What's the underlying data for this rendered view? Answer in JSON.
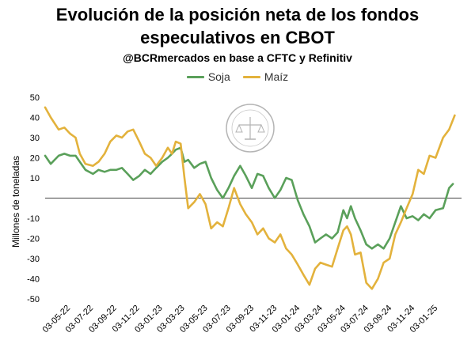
{
  "header": {
    "title_line1": "Evolución de la posición neta de los fondos",
    "title_line2": "especulativos en CBOT",
    "subtitle": "@BCRmercados en base a CFTC y Refinitiv"
  },
  "chart_data": {
    "type": "line",
    "title": "Evolución de la posición neta de los fondos especulativos en CBOT",
    "subtitle": "@BCRmercados en base a CFTC y Refinitiv",
    "ylabel": "Millones de toneladas",
    "xlabel": "",
    "ylim": [
      -50,
      50
    ],
    "yticks": [
      50,
      40,
      30,
      20,
      10,
      -10,
      -20,
      -30,
      -40,
      -50
    ],
    "xlim": [
      "2022-03-05",
      "2025-03-15"
    ],
    "xtick_labels": [
      "03-05-22",
      "03-07-22",
      "03-09-22",
      "03-11-22",
      "03-01-23",
      "03-03-23",
      "03-05-23",
      "03-07-23",
      "03-09-23",
      "03-11-23",
      "03-01-24",
      "03-03-24",
      "03-05-24",
      "03-07-24",
      "03-09-24",
      "03-11-24",
      "03-01-25"
    ],
    "xtick_dates": [
      "2022-05-03",
      "2022-07-03",
      "2022-09-03",
      "2022-11-03",
      "2023-01-03",
      "2023-03-03",
      "2023-05-03",
      "2023-07-03",
      "2023-09-03",
      "2023-11-03",
      "2024-01-03",
      "2024-03-03",
      "2024-05-03",
      "2024-07-03",
      "2024-09-03",
      "2024-11-03",
      "2025-01-03"
    ],
    "grid": false,
    "legend_position": "top",
    "series": [
      {
        "name": "Soja",
        "color": "#5aa05a",
        "points": [
          [
            "2022-03-05",
            21
          ],
          [
            "2022-03-20",
            17
          ],
          [
            "2022-04-10",
            21
          ],
          [
            "2022-04-25",
            22
          ],
          [
            "2022-05-10",
            21
          ],
          [
            "2022-05-25",
            21
          ],
          [
            "2022-06-05",
            18
          ],
          [
            "2022-06-20",
            14
          ],
          [
            "2022-07-10",
            12
          ],
          [
            "2022-07-25",
            14
          ],
          [
            "2022-08-10",
            13
          ],
          [
            "2022-08-25",
            14
          ],
          [
            "2022-09-10",
            14
          ],
          [
            "2022-09-25",
            15
          ],
          [
            "2022-10-10",
            12
          ],
          [
            "2022-10-25",
            9
          ],
          [
            "2022-11-10",
            11
          ],
          [
            "2022-11-25",
            14
          ],
          [
            "2022-12-10",
            12
          ],
          [
            "2022-12-25",
            15
          ],
          [
            "2023-01-10",
            18
          ],
          [
            "2023-01-25",
            20
          ],
          [
            "2023-02-05",
            22
          ],
          [
            "2023-02-15",
            24
          ],
          [
            "2023-02-28",
            25
          ],
          [
            "2023-03-10",
            18
          ],
          [
            "2023-03-20",
            19
          ],
          [
            "2023-04-05",
            15
          ],
          [
            "2023-04-20",
            17
          ],
          [
            "2023-05-05",
            18
          ],
          [
            "2023-05-20",
            10
          ],
          [
            "2023-06-05",
            4
          ],
          [
            "2023-06-20",
            0
          ],
          [
            "2023-07-05",
            5
          ],
          [
            "2023-07-20",
            11
          ],
          [
            "2023-08-05",
            16
          ],
          [
            "2023-08-20",
            11
          ],
          [
            "2023-09-05",
            5
          ],
          [
            "2023-09-20",
            12
          ],
          [
            "2023-10-05",
            11
          ],
          [
            "2023-10-20",
            5
          ],
          [
            "2023-11-05",
            0
          ],
          [
            "2023-11-20",
            4
          ],
          [
            "2023-12-05",
            10
          ],
          [
            "2023-12-20",
            9
          ],
          [
            "2024-01-05",
            -1
          ],
          [
            "2024-01-20",
            -8
          ],
          [
            "2024-02-05",
            -14
          ],
          [
            "2024-02-20",
            -22
          ],
          [
            "2024-03-05",
            -20
          ],
          [
            "2024-03-20",
            -18
          ],
          [
            "2024-04-05",
            -20
          ],
          [
            "2024-04-20",
            -17
          ],
          [
            "2024-05-05",
            -6
          ],
          [
            "2024-05-15",
            -10
          ],
          [
            "2024-05-25",
            -4
          ],
          [
            "2024-06-05",
            -10
          ],
          [
            "2024-06-20",
            -16
          ],
          [
            "2024-07-05",
            -23
          ],
          [
            "2024-07-20",
            -25
          ],
          [
            "2024-08-05",
            -23
          ],
          [
            "2024-08-20",
            -25
          ],
          [
            "2024-09-05",
            -20
          ],
          [
            "2024-09-20",
            -12
          ],
          [
            "2024-10-05",
            -4
          ],
          [
            "2024-10-20",
            -10
          ],
          [
            "2024-11-05",
            -9
          ],
          [
            "2024-11-20",
            -11
          ],
          [
            "2024-12-05",
            -8
          ],
          [
            "2024-12-20",
            -10
          ],
          [
            "2025-01-05",
            -6
          ],
          [
            "2025-01-25",
            -5
          ],
          [
            "2025-02-10",
            5
          ],
          [
            "2025-02-20",
            7
          ]
        ]
      },
      {
        "name": "Maíz",
        "color": "#e3b23c",
        "points": [
          [
            "2022-03-05",
            45
          ],
          [
            "2022-03-20",
            40
          ],
          [
            "2022-04-10",
            34
          ],
          [
            "2022-04-25",
            35
          ],
          [
            "2022-05-10",
            32
          ],
          [
            "2022-05-25",
            30
          ],
          [
            "2022-06-05",
            22
          ],
          [
            "2022-06-20",
            17
          ],
          [
            "2022-07-10",
            16
          ],
          [
            "2022-07-25",
            18
          ],
          [
            "2022-08-10",
            22
          ],
          [
            "2022-08-25",
            28
          ],
          [
            "2022-09-10",
            31
          ],
          [
            "2022-09-25",
            30
          ],
          [
            "2022-10-10",
            33
          ],
          [
            "2022-10-25",
            34
          ],
          [
            "2022-11-10",
            28
          ],
          [
            "2022-11-25",
            22
          ],
          [
            "2022-12-10",
            20
          ],
          [
            "2022-12-25",
            16
          ],
          [
            "2023-01-10",
            20
          ],
          [
            "2023-01-25",
            25
          ],
          [
            "2023-02-05",
            22
          ],
          [
            "2023-02-15",
            28
          ],
          [
            "2023-02-28",
            27
          ],
          [
            "2023-03-10",
            10
          ],
          [
            "2023-03-20",
            -5
          ],
          [
            "2023-04-05",
            -2
          ],
          [
            "2023-04-20",
            2
          ],
          [
            "2023-05-05",
            -3
          ],
          [
            "2023-05-20",
            -15
          ],
          [
            "2023-06-05",
            -12
          ],
          [
            "2023-06-20",
            -14
          ],
          [
            "2023-07-05",
            -5
          ],
          [
            "2023-07-20",
            5
          ],
          [
            "2023-08-05",
            -3
          ],
          [
            "2023-08-20",
            -8
          ],
          [
            "2023-09-05",
            -12
          ],
          [
            "2023-09-20",
            -18
          ],
          [
            "2023-10-05",
            -15
          ],
          [
            "2023-10-20",
            -20
          ],
          [
            "2023-11-05",
            -22
          ],
          [
            "2023-11-20",
            -18
          ],
          [
            "2023-12-05",
            -25
          ],
          [
            "2023-12-20",
            -28
          ],
          [
            "2024-01-05",
            -33
          ],
          [
            "2024-01-20",
            -38
          ],
          [
            "2024-02-05",
            -43
          ],
          [
            "2024-02-20",
            -35
          ],
          [
            "2024-03-05",
            -32
          ],
          [
            "2024-03-20",
            -33
          ],
          [
            "2024-04-05",
            -34
          ],
          [
            "2024-04-20",
            -25
          ],
          [
            "2024-05-05",
            -16
          ],
          [
            "2024-05-15",
            -14
          ],
          [
            "2024-05-25",
            -18
          ],
          [
            "2024-06-05",
            -28
          ],
          [
            "2024-06-20",
            -27
          ],
          [
            "2024-07-05",
            -42
          ],
          [
            "2024-07-20",
            -45
          ],
          [
            "2024-08-05",
            -40
          ],
          [
            "2024-08-20",
            -32
          ],
          [
            "2024-09-05",
            -30
          ],
          [
            "2024-09-20",
            -18
          ],
          [
            "2024-10-05",
            -12
          ],
          [
            "2024-10-20",
            -5
          ],
          [
            "2024-11-05",
            2
          ],
          [
            "2024-11-20",
            14
          ],
          [
            "2024-12-05",
            12
          ],
          [
            "2024-12-20",
            21
          ],
          [
            "2025-01-05",
            20
          ],
          [
            "2025-01-25",
            30
          ],
          [
            "2025-02-10",
            34
          ],
          [
            "2025-02-25",
            41
          ]
        ]
      }
    ],
    "annotations": []
  }
}
